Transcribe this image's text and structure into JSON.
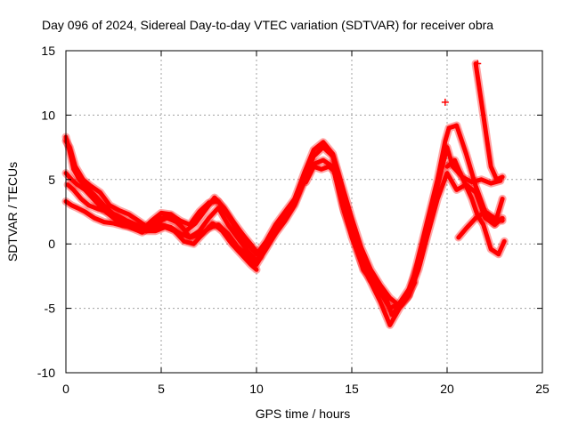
{
  "chart_data": {
    "type": "scatter",
    "title": "Day 096 of 2024, Sidereal Day-to-day VTEC variation (SDTVAR) for receiver obra",
    "xlabel": "GPS time / hours",
    "ylabel": "SDTVAR / TECUs",
    "xlim": [
      0,
      25
    ],
    "ylim": [
      -10,
      15
    ],
    "xticks": [
      0,
      5,
      10,
      15,
      20,
      25
    ],
    "yticks": [
      -10,
      -5,
      0,
      5,
      10,
      15
    ],
    "xtick_labels": [
      "0",
      "5",
      "10",
      "15",
      "20",
      "25"
    ],
    "ytick_labels": [
      "-10",
      "-5",
      "0",
      "5",
      "10",
      "15"
    ],
    "grid": true,
    "marker": "+",
    "color": "#ff0000",
    "series": [
      {
        "name": "trace-1",
        "x": [
          0.0,
          0.2,
          0.4,
          0.7,
          1.0,
          1.5,
          2.0,
          2.5,
          3.0,
          3.5,
          4.0,
          4.5,
          5.0,
          5.5,
          6.0,
          6.5,
          7.0,
          7.5,
          8.0,
          8.5,
          9.0,
          9.5,
          10.0,
          10.5,
          11.0,
          11.5,
          12.0,
          12.5,
          13.0,
          13.5,
          14.0,
          14.5,
          15.0,
          15.5,
          16.0,
          16.5,
          17.0,
          17.5,
          18.0,
          18.5,
          19.0,
          19.5,
          19.9,
          20.1,
          20.5,
          21.0,
          21.5,
          22.0,
          22.5,
          22.9
        ],
        "y": [
          8.3,
          7.2,
          5.8,
          5.0,
          4.5,
          3.8,
          3.0,
          2.3,
          1.8,
          1.4,
          1.0,
          1.2,
          1.5,
          1.3,
          0.8,
          0.5,
          0.7,
          1.2,
          1.5,
          0.8,
          -0.2,
          -0.9,
          -1.6,
          -0.4,
          0.8,
          1.8,
          3.0,
          4.8,
          6.2,
          6.5,
          6.0,
          3.0,
          0.5,
          -1.5,
          -3.0,
          -4.5,
          -6.3,
          -5.0,
          -4.0,
          -1.0,
          2.0,
          5.0,
          8.0,
          9.0,
          9.2,
          7.0,
          4.5,
          2.5,
          1.5,
          2.0
        ]
      },
      {
        "name": "trace-2",
        "x": [
          0.0,
          0.3,
          0.6,
          1.0,
          1.5,
          2.0,
          2.5,
          3.0,
          3.5,
          4.0,
          4.5,
          5.0,
          5.5,
          6.0,
          6.5,
          7.0,
          7.5,
          8.0,
          8.5,
          9.0,
          9.5,
          10.0,
          10.5,
          11.0,
          11.5,
          12.0,
          12.5,
          13.0,
          13.5,
          14.0,
          14.5,
          15.0,
          15.5,
          16.0,
          16.5,
          17.0,
          17.5,
          18.0,
          18.5,
          19.0,
          19.5,
          20.0,
          20.3,
          20.8,
          21.3,
          21.8,
          22.3,
          22.8
        ],
        "y": [
          5.5,
          5.0,
          4.6,
          4.2,
          3.4,
          2.6,
          2.0,
          1.5,
          1.2,
          0.9,
          1.5,
          2.0,
          2.2,
          1.5,
          0.5,
          1.0,
          2.0,
          2.8,
          1.5,
          0.5,
          -0.5,
          -1.3,
          -0.2,
          1.0,
          2.0,
          3.2,
          5.0,
          6.8,
          7.5,
          6.8,
          4.0,
          1.5,
          -1.0,
          -2.5,
          -3.8,
          -5.0,
          -4.6,
          -3.5,
          -1.5,
          1.5,
          4.5,
          7.5,
          6.0,
          5.2,
          4.8,
          5.0,
          4.7,
          4.9
        ]
      },
      {
        "name": "trace-3",
        "x": [
          0.0,
          0.3,
          0.6,
          1.0,
          1.5,
          2.0,
          2.5,
          3.0,
          3.5,
          4.0,
          4.5,
          5.0,
          5.5,
          6.0,
          6.5,
          7.0,
          7.5,
          8.0,
          8.5,
          9.0,
          9.5,
          10.0,
          10.5,
          11.0,
          11.5,
          12.0,
          12.5,
          13.0,
          13.5,
          14.0,
          14.5,
          15.0,
          15.5,
          16.0,
          16.5,
          17.0,
          17.5,
          18.0,
          18.5,
          19.0,
          19.5,
          20.0,
          20.5,
          21.0,
          21.5,
          22.0,
          22.5,
          22.9
        ],
        "y": [
          3.3,
          3.0,
          2.8,
          2.5,
          2.0,
          1.7,
          1.6,
          1.4,
          1.3,
          1.1,
          1.8,
          2.4,
          2.3,
          1.8,
          1.5,
          2.5,
          3.2,
          3.3,
          2.2,
          1.0,
          0.0,
          -0.8,
          0.2,
          1.5,
          2.5,
          3.5,
          5.5,
          7.3,
          7.9,
          7.0,
          4.5,
          2.0,
          -0.3,
          -2.0,
          -3.2,
          -4.2,
          -4.8,
          -4.0,
          -2.0,
          0.8,
          3.5,
          5.5,
          4.2,
          4.6,
          4.0,
          2.0,
          1.5,
          3.5
        ]
      },
      {
        "name": "trace-4",
        "x": [
          0.0,
          0.2,
          0.5,
          0.9,
          1.3,
          1.8,
          2.3,
          2.8,
          3.3,
          3.8,
          4.3,
          4.8,
          5.3,
          5.8,
          6.3,
          6.8,
          7.3,
          7.8,
          8.3,
          8.8,
          9.3,
          9.8,
          10.2
        ],
        "y": [
          8.0,
          7.5,
          6.0,
          5.0,
          4.5,
          4.0,
          3.0,
          2.6,
          2.3,
          1.8,
          1.3,
          1.7,
          2.0,
          1.7,
          1.0,
          1.6,
          2.6,
          3.6,
          2.8,
          1.7,
          0.7,
          -0.2,
          -1.0
        ]
      },
      {
        "name": "trace-5",
        "x": [
          0.1,
          0.4,
          0.8,
          1.2,
          1.7,
          2.2,
          2.7,
          3.2,
          3.7,
          4.2,
          4.7,
          5.2,
          5.7,
          6.2,
          6.7,
          7.2,
          7.7,
          8.2,
          8.7,
          9.2,
          9.7,
          10.0
        ],
        "y": [
          4.6,
          4.2,
          3.5,
          3.0,
          2.7,
          2.5,
          2.2,
          1.8,
          1.5,
          1.0,
          1.0,
          1.3,
          1.0,
          0.2,
          0.0,
          0.8,
          1.6,
          1.0,
          0.0,
          -0.8,
          -1.6,
          -2.0
        ]
      },
      {
        "name": "trace-6",
        "x": [
          12.6,
          13.0,
          13.4,
          13.8,
          14.2,
          14.6,
          15.0,
          15.3,
          15.6,
          16.0,
          16.4,
          16.8,
          17.1,
          17.5,
          17.9,
          18.3
        ],
        "y": [
          4.8,
          6.0,
          5.8,
          6.0,
          5.5,
          2.5,
          1.0,
          -0.5,
          -2.0,
          -2.8,
          -3.4,
          -4.2,
          -5.5,
          -4.8,
          -4.2,
          -3.0
        ]
      },
      {
        "name": "trace-7",
        "x": [
          20.0,
          20.4,
          20.9,
          21.3,
          21.6,
          21.9,
          22.3,
          22.7,
          23.0
        ],
        "y": [
          6.0,
          6.5,
          4.8,
          3.5,
          2.2,
          1.5,
          -0.4,
          -0.8,
          0.2
        ]
      },
      {
        "name": "trace-8",
        "x": [
          21.5,
          21.7,
          21.9,
          22.1,
          22.3,
          22.6,
          22.9
        ],
        "y": [
          14.0,
          12.0,
          10.0,
          8.0,
          6.0,
          5.0,
          5.2
        ]
      },
      {
        "name": "trace-9",
        "x": [
          20.6,
          21.0,
          21.5,
          22.0,
          22.5,
          22.9
        ],
        "y": [
          0.5,
          1.2,
          2.0,
          2.5,
          2.0,
          1.8
        ]
      }
    ],
    "outliers": [
      {
        "x": 19.9,
        "y": 11.0
      },
      {
        "x": 21.6,
        "y": 14.0
      }
    ]
  }
}
